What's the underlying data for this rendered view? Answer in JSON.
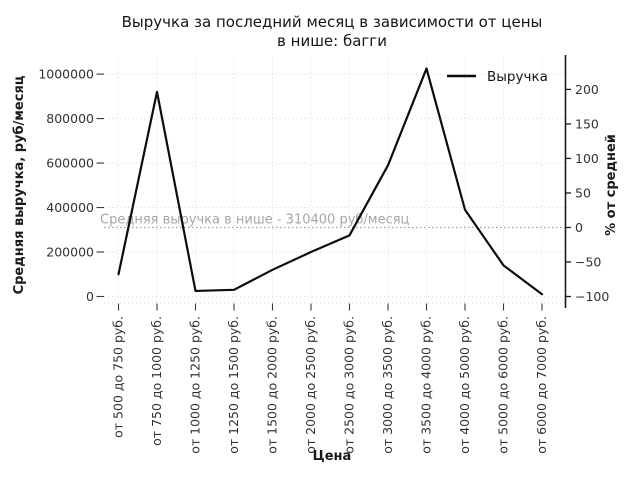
{
  "title": {
    "line1": "Выручка за последний месяц в зависимости от цены",
    "line2": "в нише: багги"
  },
  "axes": {
    "x_label": "Цена",
    "left_label": "Средняя выручка, руб/месяц",
    "right_label": "% от средней",
    "left_ticks": [
      0,
      200000,
      400000,
      600000,
      800000,
      1000000
    ],
    "right_ticks": [
      200,
      150,
      100,
      50,
      0,
      -50,
      -100
    ]
  },
  "legend": {
    "label": "Выручка",
    "position": "upper-right"
  },
  "annotation": {
    "text": "Средняя выручка в нише - 310400 руб/месяц",
    "average_value": 310400
  },
  "colors": {
    "line": "#0d0d0d",
    "grid": "#dcdcdc",
    "average_line": "#9f9f9f",
    "tick_mark": "#3a3a3a",
    "right_spine": "#1a1a1a",
    "bottom_spine": "#d6d6d6"
  },
  "chart_data": {
    "type": "line",
    "title": "Выручка за последний месяц в зависимости от цены в нише: багги",
    "xlabel": "Цена",
    "ylabel_left": "Средняя выручка, руб/месяц",
    "ylabel_right": "% от средней",
    "categories": [
      "от 500 до 750 руб.",
      "от 750 до 1000 руб.",
      "от 1000 до 1250 руб.",
      "от 1250 до 1500 руб.",
      "от 1500 до 2000 руб.",
      "от 2000 до 2500 руб.",
      "от 2500 до 3000 руб.",
      "от 3000 до 3500 руб.",
      "от 3500 до 4000 руб.",
      "от 4000 до 5000 руб.",
      "от 5000 до 6000 руб.",
      "от 6000 до 7000 руб."
    ],
    "series": [
      {
        "name": "Выручка",
        "values": [
          100000,
          920000,
          25000,
          30000,
          120000,
          200000,
          275000,
          590000,
          1025000,
          390000,
          140000,
          10000
        ]
      }
    ],
    "average_line": {
      "value": 310400,
      "label": "Средняя выручка в нише - 310400 руб/месяц",
      "style": "dotted"
    },
    "ylim_left": [
      -30000,
      1080000
    ],
    "right_axis_percent_of": 310400,
    "right_ticks_percent": [
      200,
      150,
      100,
      50,
      0,
      -50,
      -100
    ],
    "grid": true,
    "grid_style": "dotted",
    "legend_position": "upper right"
  }
}
